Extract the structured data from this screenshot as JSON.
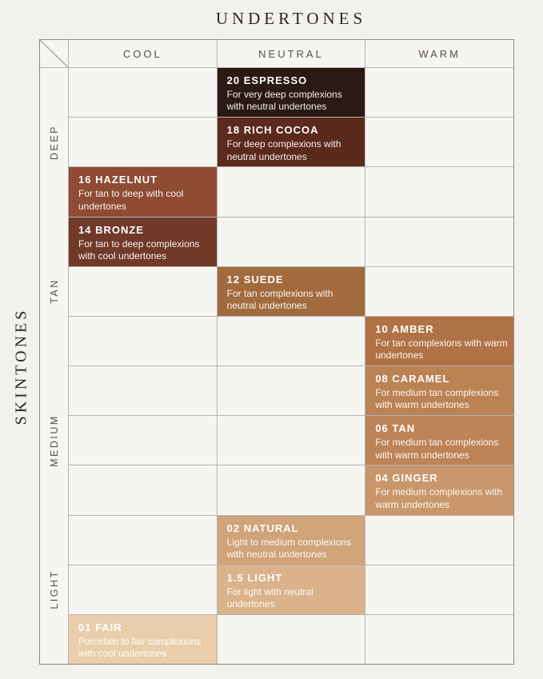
{
  "chart_data": {
    "type": "table",
    "title": "UNDERTONES",
    "row_axis_label": "SKINTONES",
    "columns": [
      "COOL",
      "NEUTRAL",
      "WARM"
    ],
    "row_groups": [
      "DEEP",
      "TAN",
      "MEDIUM",
      "LIGHT"
    ],
    "grid": {
      "rows": 12,
      "cols": 3,
      "rows_per_group": 3
    },
    "cells": [
      {
        "row": 0,
        "column": "NEUTRAL",
        "name": "20 ESPRESSO",
        "description": "For very deep complexions with neutral undertones",
        "color": "#2a1a14"
      },
      {
        "row": 1,
        "column": "NEUTRAL",
        "name": "18 RICH COCOA",
        "description": "For deep complexions with neutral undertones",
        "color": "#5c2a1c"
      },
      {
        "row": 2,
        "column": "COOL",
        "name": "16 HAZELNUT",
        "description": "For tan to deep with cool undertones",
        "color": "#8f4b33"
      },
      {
        "row": 3,
        "column": "COOL",
        "name": "14 BRONZE",
        "description": "For tan to deep complexions with cool undertones",
        "color": "#713a28"
      },
      {
        "row": 4,
        "column": "NEUTRAL",
        "name": "12 SUEDE",
        "description": "For tan complexions with neutral undertones",
        "color": "#a26b3e"
      },
      {
        "row": 5,
        "column": "WARM",
        "name": "10 AMBER",
        "description": "For tan complexions with warm undertones",
        "color": "#b17345"
      },
      {
        "row": 6,
        "column": "WARM",
        "name": "08 CARAMEL",
        "description": "For medium tan complexions with warm undertones",
        "color": "#bb8254"
      },
      {
        "row": 7,
        "column": "WARM",
        "name": "06 TAN",
        "description": "For medium tan complexions with warm undertones",
        "color": "#bd8457"
      },
      {
        "row": 8,
        "column": "WARM",
        "name": "04 GINGER",
        "description": "For medium complexions with warm undertones",
        "color": "#c9976b"
      },
      {
        "row": 9,
        "column": "NEUTRAL",
        "name": "02 NATURAL",
        "description": "Light to medium complexions with neutral undertones",
        "color": "#d0a378"
      },
      {
        "row": 10,
        "column": "NEUTRAL",
        "name": "1.5 LIGHT",
        "description": "For light with neutral undertones",
        "color": "#dab38b"
      },
      {
        "row": 11,
        "column": "COOL",
        "name": "01 FAIR",
        "description": "Porcelain to fair complexions with cool undertones",
        "color": "#eaceab"
      }
    ],
    "colors": {
      "page_background": "#f3f1ee",
      "empty_cell": "#f6f5f2",
      "grid_line": "#b7b3ae",
      "outer_border": "#8d8984",
      "header_text": "#56514d",
      "title_text": "#2a2622",
      "cell_text": "#ffffff"
    },
    "legend_position": "none",
    "grid_on": true
  }
}
